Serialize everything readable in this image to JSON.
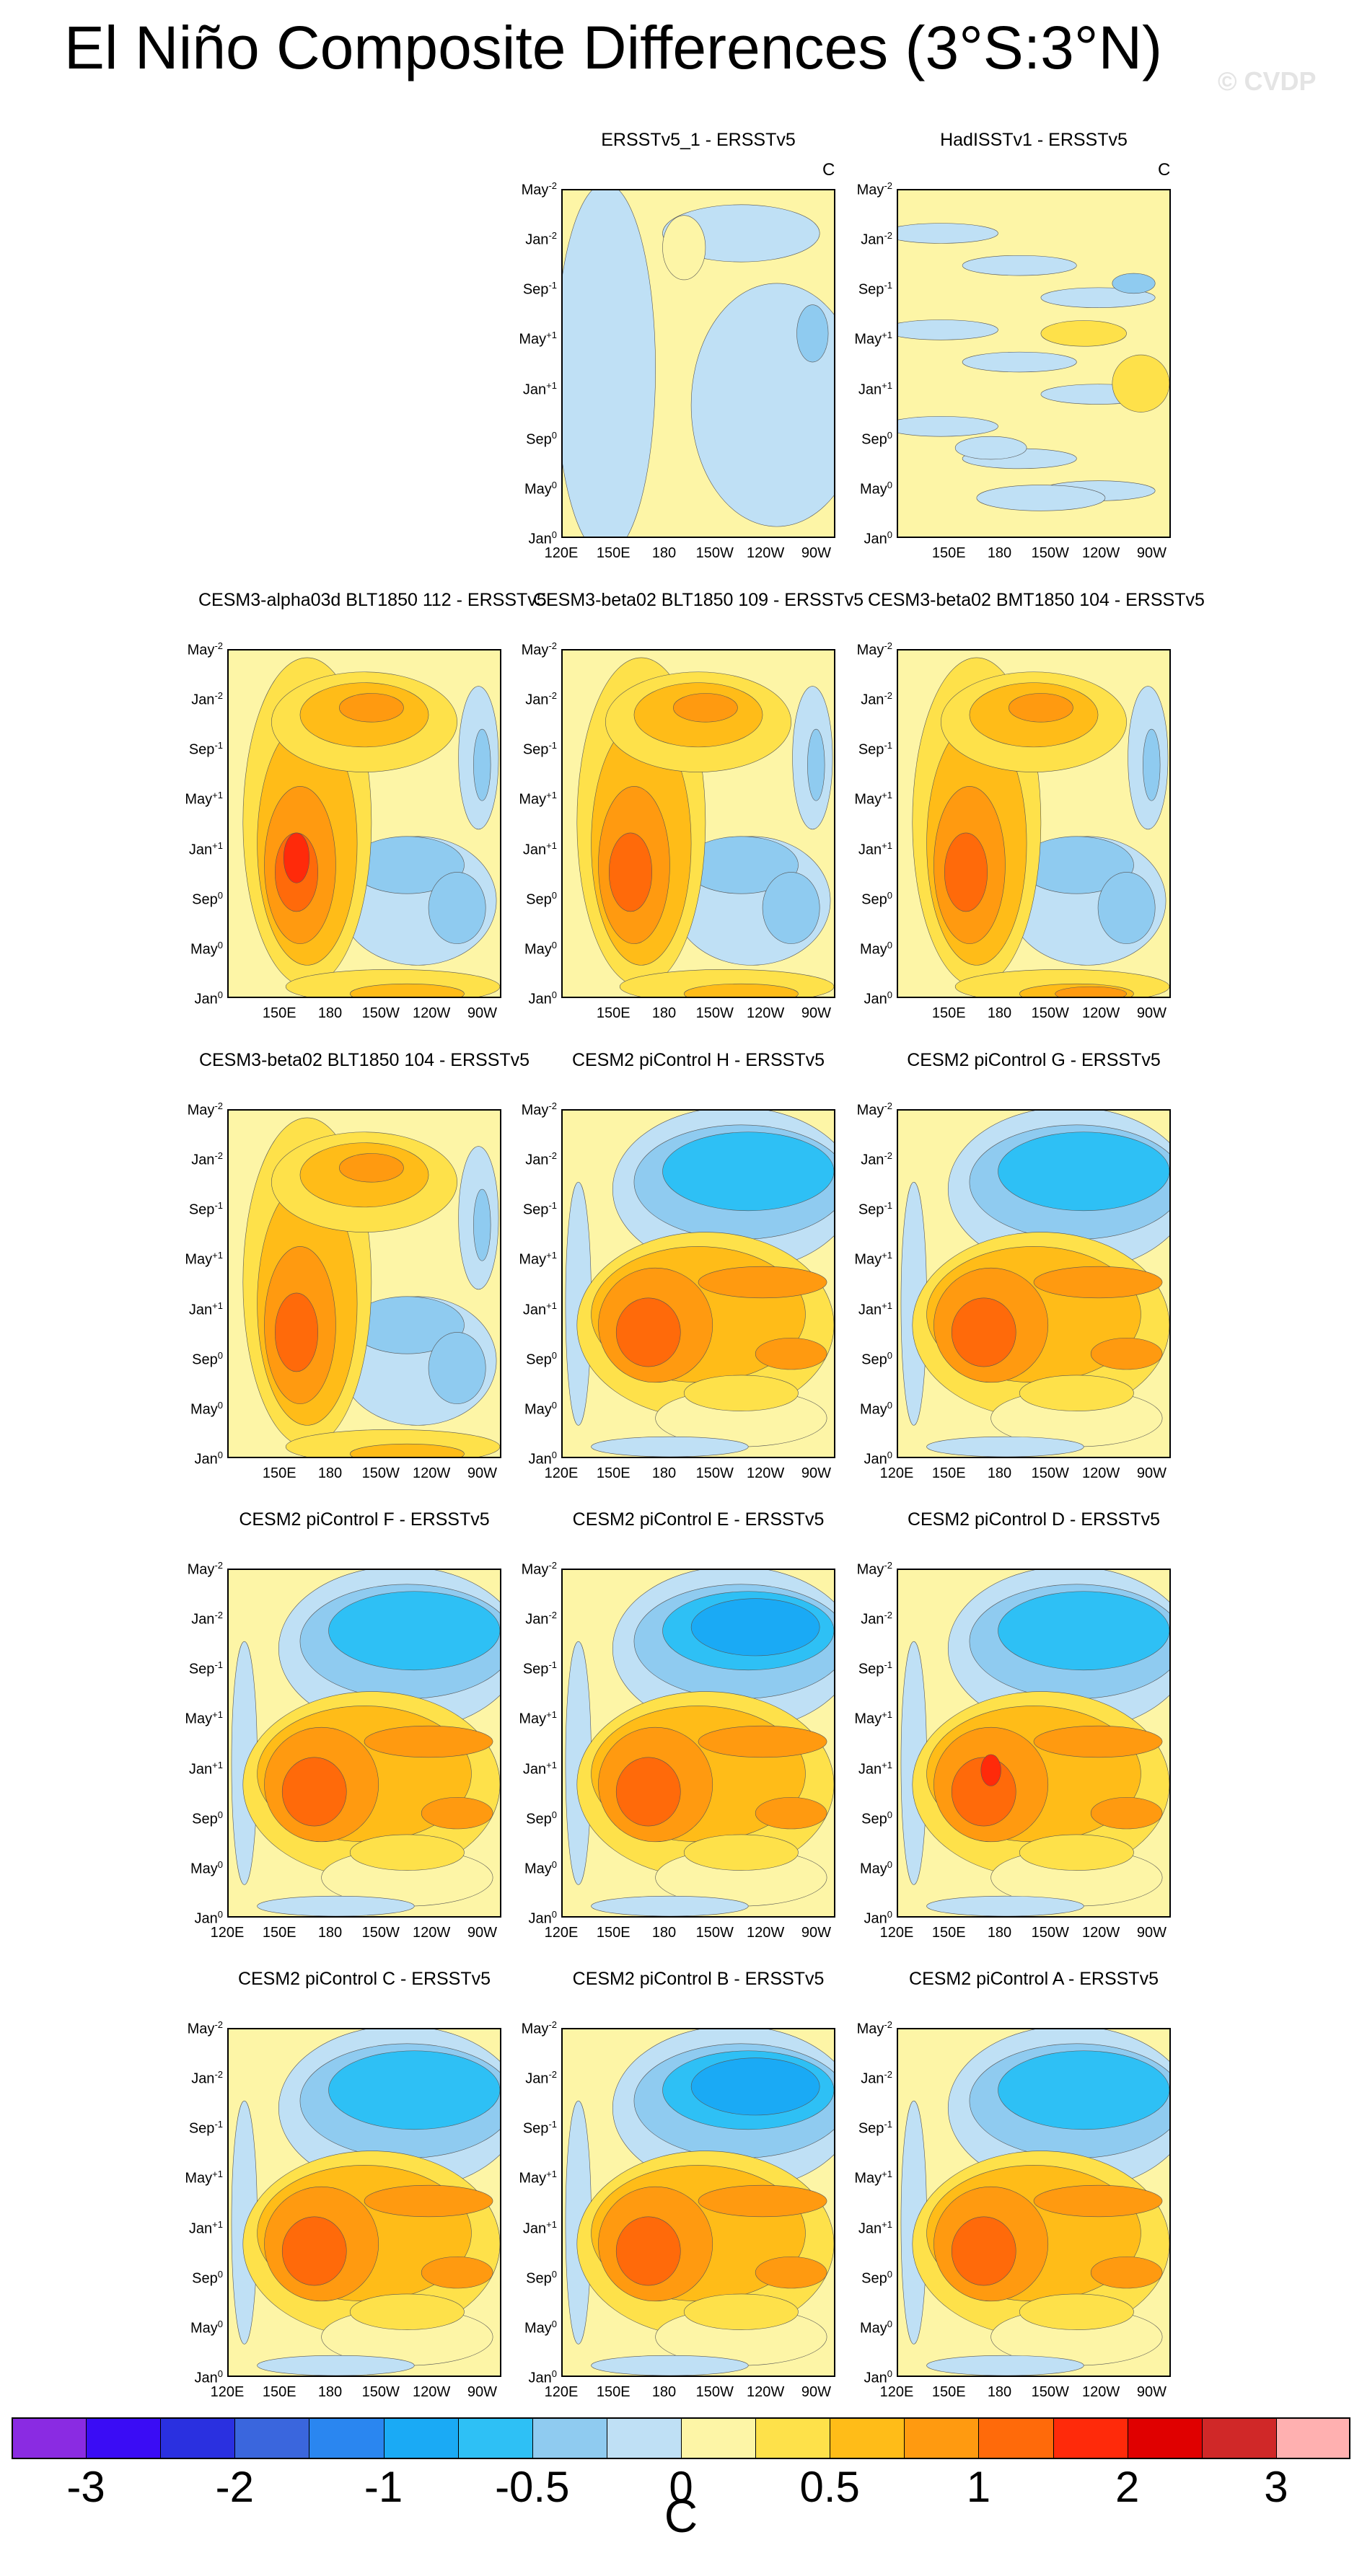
{
  "figure": {
    "title": "El Niño Composite Differences (3°S:3°N)",
    "watermark": "© CVDP"
  },
  "chart_data": [
    {
      "type": "heatmap",
      "title": "ERSSTv5_1 - ERSSTv5",
      "units": "C",
      "kind": "obs1",
      "xlabels": [
        "120E",
        "150E",
        "180",
        "150W",
        "120W",
        "90W"
      ]
    },
    {
      "type": "heatmap",
      "title": "HadISSTv1 - ERSSTv5",
      "units": "C",
      "kind": "obs2",
      "xlabels": [
        "150E",
        "180",
        "150W",
        "120W",
        "90W"
      ]
    },
    {
      "type": "heatmap",
      "title": "CESM3-alpha03d BLT1850 112 - ERSSTv5",
      "kind": "cesm3a",
      "xlabels": [
        "150E",
        "180",
        "150W",
        "120W",
        "90W"
      ]
    },
    {
      "type": "heatmap",
      "title": "CESM3-beta02 BLT1850 109 - ERSSTv5",
      "kind": "cesm3b",
      "xlabels": [
        "150E",
        "180",
        "150W",
        "120W",
        "90W"
      ]
    },
    {
      "type": "heatmap",
      "title": "CESM3-beta02 BMT1850 104 - ERSSTv5",
      "kind": "cesm3c",
      "xlabels": [
        "150E",
        "180",
        "150W",
        "120W",
        "90W"
      ]
    },
    {
      "type": "heatmap",
      "title": "CESM3-beta02 BLT1850 104 - ERSSTv5",
      "kind": "cesm3d",
      "xlabels": [
        "150E",
        "180",
        "150W",
        "120W",
        "90W"
      ]
    },
    {
      "type": "heatmap",
      "title": "CESM2 piControl H - ERSSTv5",
      "kind": "cesm2",
      "xlabels": [
        "120E",
        "150E",
        "180",
        "150W",
        "120W",
        "90W"
      ]
    },
    {
      "type": "heatmap",
      "title": "CESM2 piControl G - ERSSTv5",
      "kind": "cesm2",
      "xlabels": [
        "120E",
        "150E",
        "180",
        "150W",
        "120W",
        "90W"
      ]
    },
    {
      "type": "heatmap",
      "title": "CESM2 piControl F - ERSSTv5",
      "kind": "cesm2",
      "xlabels": [
        "120E",
        "150E",
        "180",
        "150W",
        "120W",
        "90W"
      ]
    },
    {
      "type": "heatmap",
      "title": "CESM2 piControl E - ERSSTv5",
      "kind": "cesm2",
      "xlabels": [
        "120E",
        "150E",
        "180",
        "150W",
        "120W",
        "90W"
      ]
    },
    {
      "type": "heatmap",
      "title": "CESM2 piControl D - ERSSTv5",
      "kind": "cesm2",
      "xlabels": [
        "120E",
        "150E",
        "180",
        "150W",
        "120W",
        "90W"
      ]
    },
    {
      "type": "heatmap",
      "title": "CESM2 piControl C - ERSSTv5",
      "kind": "cesm2",
      "xlabels": [
        "120E",
        "150E",
        "180",
        "150W",
        "120W",
        "90W"
      ]
    },
    {
      "type": "heatmap",
      "title": "CESM2 piControl B - ERSSTv5",
      "kind": "cesm2",
      "xlabels": [
        "120E",
        "150E",
        "180",
        "150W",
        "120W",
        "90W"
      ]
    },
    {
      "type": "heatmap",
      "title": "CESM2 piControl A - ERSSTv5",
      "kind": "cesm2",
      "xlabels": [
        "120E",
        "150E",
        "180",
        "150W",
        "120W",
        "90W"
      ]
    }
  ],
  "axes": {
    "ylabels": [
      {
        "base": "May",
        "sup": "-2"
      },
      {
        "base": "Jan",
        "sup": "-2"
      },
      {
        "base": "Sep",
        "sup": "-1"
      },
      {
        "base": "May",
        "sup": "+1"
      },
      {
        "base": "Jan",
        "sup": "+1"
      },
      {
        "base": "Sep",
        "sup": "0"
      },
      {
        "base": "May",
        "sup": "0"
      },
      {
        "base": "Jan",
        "sup": "0"
      }
    ]
  },
  "colorbar": {
    "units": "C",
    "labels": [
      "-3",
      "-2",
      "-1",
      "-0.5",
      "0",
      "0.5",
      "1",
      "2",
      "3"
    ],
    "colors": [
      "#8a2be2",
      "#3a0cf5",
      "#2a30e0",
      "#3a66dd",
      "#2a86f0",
      "#1aaaf5",
      "#2ec0f5",
      "#8fcbf0",
      "#bfe0f5",
      "#fdf5a6",
      "#fee14a",
      "#ffbc18",
      "#ff9a10",
      "#ff6a0a",
      "#ff2a0a",
      "#e00000",
      "#d02828",
      "#ffb0b0"
    ]
  }
}
